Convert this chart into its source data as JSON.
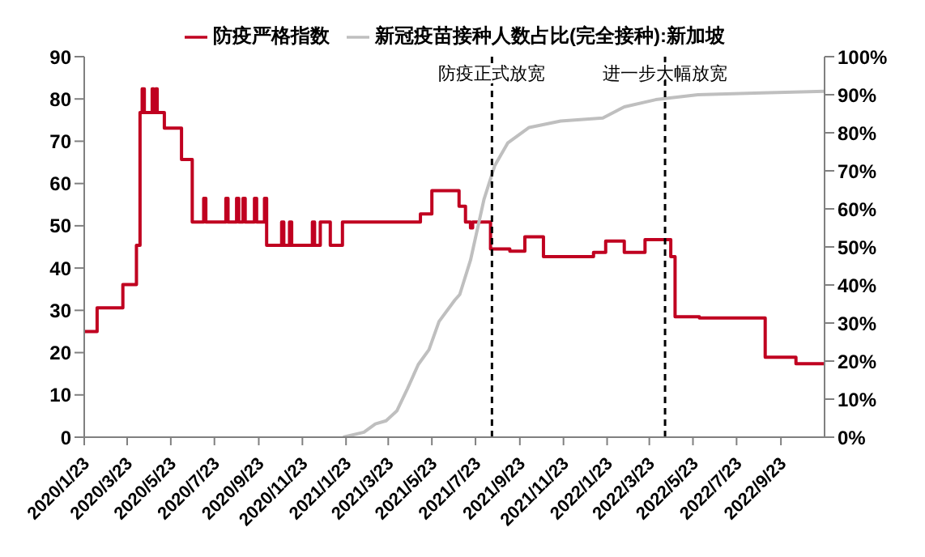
{
  "chart_data": {
    "type": "line",
    "legend": "top",
    "xlim": [
      "2020-01-23",
      "2022-11-23"
    ],
    "xticks": [
      {
        "value": "2020-01-23",
        "label": "2020/1/23"
      },
      {
        "value": "2020-03-23",
        "label": "2020/3/23"
      },
      {
        "value": "2020-05-23",
        "label": "2020/5/23"
      },
      {
        "value": "2020-07-23",
        "label": "2020/7/23"
      },
      {
        "value": "2020-09-23",
        "label": "2020/9/23"
      },
      {
        "value": "2020-11-23",
        "label": "2020/11/23"
      },
      {
        "value": "2021-01-23",
        "label": "2021/1/23"
      },
      {
        "value": "2021-03-23",
        "label": "2021/3/23"
      },
      {
        "value": "2021-05-23",
        "label": "2021/5/23"
      },
      {
        "value": "2021-07-23",
        "label": "2021/7/23"
      },
      {
        "value": "2021-09-23",
        "label": "2021/9/23"
      },
      {
        "value": "2021-11-23",
        "label": "2021/11/23"
      },
      {
        "value": "2022-01-23",
        "label": "2022/1/23"
      },
      {
        "value": "2022-03-23",
        "label": "2022/3/23"
      },
      {
        "value": "2022-05-23",
        "label": "2022/5/23"
      },
      {
        "value": "2022-07-23",
        "label": "2022/7/23"
      },
      {
        "value": "2022-09-23",
        "label": "2022/9/23"
      }
    ],
    "ylim": [
      0,
      90
    ],
    "yticks": [
      0,
      10,
      20,
      30,
      40,
      50,
      60,
      70,
      80,
      90
    ],
    "y2lim": [
      0,
      100
    ],
    "y2ticks": [
      {
        "value": 0,
        "label": "0%"
      },
      {
        "value": 10,
        "label": "10%"
      },
      {
        "value": 20,
        "label": "20%"
      },
      {
        "value": 30,
        "label": "30%"
      },
      {
        "value": 40,
        "label": "40%"
      },
      {
        "value": 50,
        "label": "50%"
      },
      {
        "value": 60,
        "label": "60%"
      },
      {
        "value": 70,
        "label": "70%"
      },
      {
        "value": 80,
        "label": "80%"
      },
      {
        "value": 90,
        "label": "90%"
      },
      {
        "value": 100,
        "label": "100%"
      }
    ],
    "ref_lines": [
      {
        "axis": "x",
        "value": "2021-08-15",
        "label": "防疫正式放宽",
        "color": "#000000",
        "line_style": "dashed"
      },
      {
        "axis": "x",
        "value": "2022-04-14",
        "label": "进一步大幅放宽",
        "color": "#000000",
        "line_style": "dashed"
      }
    ],
    "series": [
      {
        "name": "防疫严格指数",
        "type": "step",
        "color": "#c00020",
        "x": [
          "2020-01-23",
          "2020-02-10",
          "2020-03-17",
          "2020-04-05",
          "2020-04-10",
          "2020-04-13",
          "2020-04-16",
          "2020-04-27",
          "2020-04-29",
          "2020-05-02",
          "2020-05-04",
          "2020-05-14",
          "2020-06-07",
          "2020-06-22",
          "2020-07-08",
          "2020-07-11",
          "2020-08-08",
          "2020-08-11",
          "2020-08-23",
          "2020-08-26",
          "2020-09-01",
          "2020-09-04",
          "2020-09-17",
          "2020-09-20",
          "2020-10-01",
          "2020-10-04",
          "2020-10-25",
          "2020-10-28",
          "2020-11-05",
          "2020-11-08",
          "2020-12-07",
          "2020-12-10",
          "2020-12-18",
          "2021-01-01",
          "2021-01-18",
          "2021-05-07",
          "2021-05-23",
          "2021-06-30",
          "2021-07-09",
          "2021-07-16",
          "2021-07-19",
          "2021-08-13",
          "2021-09-09",
          "2021-09-30",
          "2021-10-26",
          "2022-01-04",
          "2022-01-21",
          "2022-02-16",
          "2022-03-17",
          "2022-04-22",
          "2022-04-28",
          "2022-06-01",
          "2022-09-01",
          "2022-10-14",
          "2022-11-23"
        ],
        "values": [
          25,
          30.6,
          36.1,
          45.4,
          76.8,
          82.4,
          76.8,
          82.4,
          76.8,
          82.4,
          76.8,
          73.1,
          65.7,
          50.9,
          56.5,
          50.9,
          56.5,
          50.9,
          56.5,
          50.9,
          56.5,
          50.9,
          56.5,
          50.9,
          56.5,
          45.4,
          50.9,
          45.4,
          50.9,
          45.4,
          50.9,
          45.4,
          50.9,
          45.4,
          50.9,
          52.8,
          58.3,
          54.6,
          50.9,
          49.5,
          50.9,
          44.5,
          44,
          47.4,
          42.7,
          43.7,
          46.4,
          43.7,
          46.7,
          42.7,
          28.5,
          28.2,
          18.9,
          17.4,
          17.4
        ]
      },
      {
        "name": "新冠疫苗接种人数占比(完全接种):新加坡",
        "color": "#bfbfbf",
        "axis": "y2",
        "x": [
          "2021-01-19",
          "2021-02-17",
          "2021-03-05",
          "2021-03-20",
          "2021-04-04",
          "2021-04-19",
          "2021-05-04",
          "2021-05-19",
          "2021-06-02",
          "2021-06-24",
          "2021-07-01",
          "2021-07-16",
          "2021-08-04",
          "2021-08-19",
          "2021-09-06",
          "2021-10-06",
          "2021-11-19",
          "2022-01-17",
          "2022-02-16",
          "2022-04-01",
          "2022-05-30",
          "2022-08-27",
          "2022-11-23"
        ],
        "values": [
          0,
          1.3,
          3.5,
          4.3,
          6.9,
          12.8,
          19.1,
          23,
          30.4,
          36,
          37.5,
          46.5,
          62.6,
          71.4,
          77.3,
          81.4,
          83.1,
          83.9,
          86.8,
          88.7,
          90,
          90.5,
          90.9
        ]
      }
    ]
  }
}
